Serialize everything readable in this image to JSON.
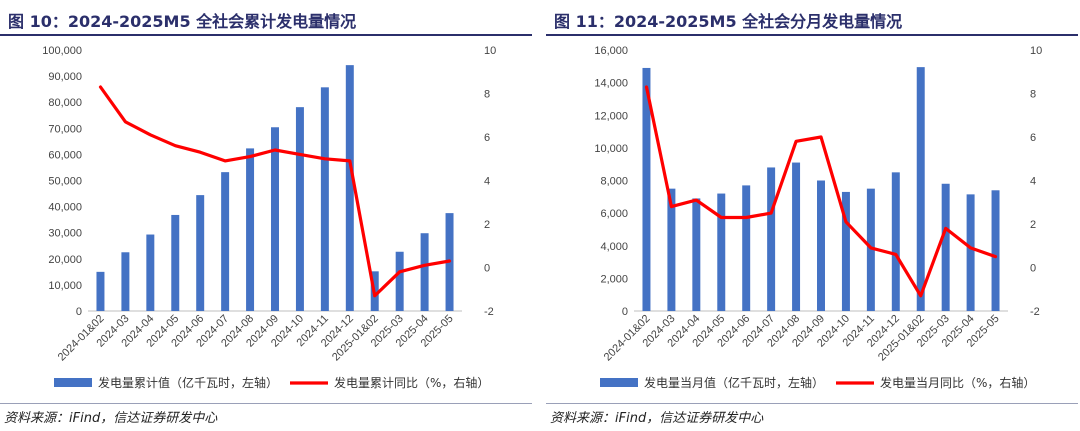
{
  "colors": {
    "bar": "#4472c4",
    "line": "#ff0000",
    "title": "#2b2f6b",
    "axis": "#bfbfbf"
  },
  "chart_data": [
    {
      "title": "图 10：2024-2025M5 全社会累计发电量情况",
      "type": "bar",
      "categories": [
        "2024-01&02",
        "2024-03",
        "2024-04",
        "2024-05",
        "2024-06",
        "2024-07",
        "2024-08",
        "2024-09",
        "2024-10",
        "2024-11",
        "2024-12",
        "2025-01&02",
        "2025-03",
        "2025-04",
        "2025-05"
      ],
      "series": [
        {
          "name": "发电量累计值（亿千瓦时，左轴）",
          "type": "bar",
          "axis": "left",
          "values": [
            15000,
            22500,
            29300,
            36800,
            44400,
            53200,
            62300,
            70400,
            78100,
            85700,
            94200,
            15200,
            22700,
            29800,
            37500
          ]
        },
        {
          "name": "发电量累计同比（%，右轴）",
          "type": "line",
          "axis": "right",
          "values": [
            8.3,
            6.7,
            6.1,
            5.6,
            5.3,
            4.9,
            5.1,
            5.4,
            5.2,
            5.0,
            4.9,
            -1.3,
            -0.2,
            0.1,
            0.3
          ]
        }
      ],
      "ylim_left": [
        0,
        100000
      ],
      "ylim_right": [
        -2,
        10
      ],
      "left_ticks": [
        "0",
        "10,000",
        "20,000",
        "30,000",
        "40,000",
        "50,000",
        "60,000",
        "70,000",
        "80,000",
        "90,000",
        "100,000"
      ],
      "right_ticks": [
        "-2",
        "0",
        "2",
        "4",
        "6",
        "8",
        "10"
      ],
      "legend": "bottom",
      "source": "资料来源：iFind，信达证券研发中心"
    },
    {
      "title": "图 11：2024-2025M5 全社会分月发电量情况",
      "type": "bar",
      "categories": [
        "2024-01&02",
        "2024-03",
        "2024-04",
        "2024-05",
        "2024-06",
        "2024-07",
        "2024-08",
        "2024-09",
        "2024-10",
        "2024-11",
        "2024-12",
        "2025-01&02",
        "2025-03",
        "2025-04",
        "2025-05"
      ],
      "series": [
        {
          "name": "发电量当月值（亿千瓦时，左轴）",
          "type": "bar",
          "axis": "left",
          "values": [
            14900,
            7500,
            6900,
            7200,
            7700,
            8800,
            9100,
            8000,
            7300,
            7500,
            8500,
            14950,
            7800,
            7150,
            7400
          ]
        },
        {
          "name": "发电量当月同比（%，右轴）",
          "type": "line",
          "axis": "right",
          "values": [
            8.3,
            2.8,
            3.1,
            2.3,
            2.3,
            2.5,
            5.8,
            6.0,
            2.1,
            0.9,
            0.6,
            -1.3,
            1.8,
            0.9,
            0.5
          ]
        }
      ],
      "ylim_left": [
        0,
        16000
      ],
      "ylim_right": [
        -2,
        10
      ],
      "left_ticks": [
        "0",
        "2,000",
        "4,000",
        "6,000",
        "8,000",
        "10,000",
        "12,000",
        "14,000",
        "16,000"
      ],
      "right_ticks": [
        "-2",
        "0",
        "2",
        "4",
        "6",
        "8",
        "10"
      ],
      "legend": "bottom",
      "source": "资料来源：iFind，信达证券研发中心"
    }
  ]
}
